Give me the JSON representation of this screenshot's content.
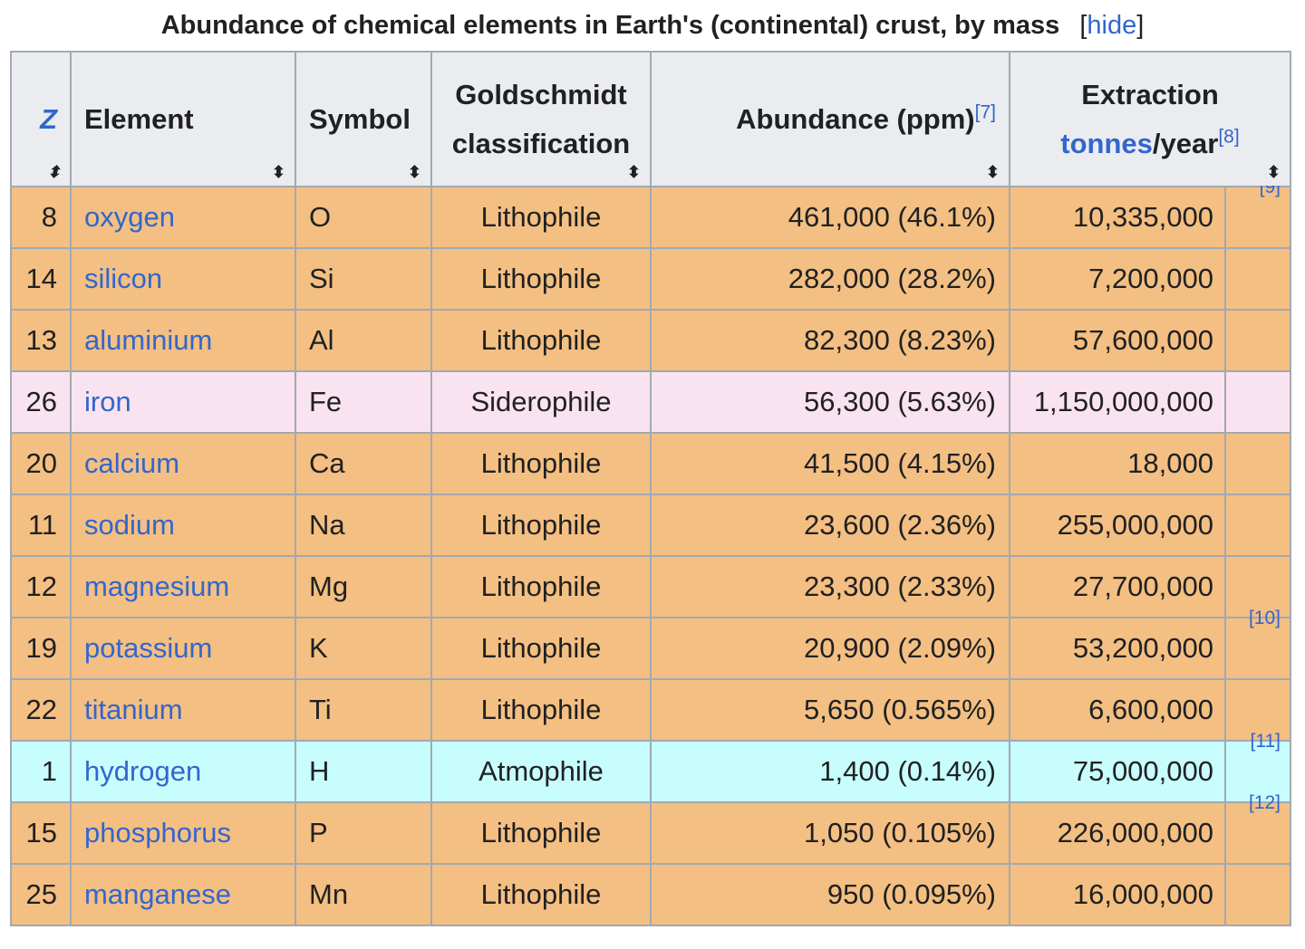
{
  "caption": {
    "title": "Abundance of chemical elements in Earth's (continental) crust, by mass",
    "hide_bracket_open": "[",
    "hide_label": "hide",
    "hide_bracket_close": "]"
  },
  "headers": {
    "z": "Z",
    "element": "Element",
    "symbol": "Symbol",
    "goldschmidt_line1": "Goldschmidt",
    "goldschmidt_line2": "classification",
    "abundance": "Abundance (ppm)",
    "abundance_ref": "[7]",
    "extraction_line1": "Extraction",
    "extraction_link": "tonnes",
    "extraction_suffix": "/year",
    "extraction_ref": "[8]",
    "sort_icon": "⬍"
  },
  "colors": {
    "lithophile": "#f4bf82",
    "siderophile": "#fae3f0",
    "atmophile": "#c8fdfd",
    "link": "#3366cc",
    "header_bg": "#eaecf0",
    "border": "#a2a9b1"
  },
  "rows": [
    {
      "z": "8",
      "element": "oxygen",
      "symbol": "O",
      "class": "Lithophile",
      "abundance": "461,000 (46.1%)",
      "extraction": "10,335,000",
      "ref": "[9]",
      "type": "lithophile"
    },
    {
      "z": "14",
      "element": "silicon",
      "symbol": "Si",
      "class": "Lithophile",
      "abundance": "282,000 (28.2%)",
      "extraction": "7,200,000",
      "ref": "",
      "type": "lithophile"
    },
    {
      "z": "13",
      "element": "aluminium",
      "symbol": "Al",
      "class": "Lithophile",
      "abundance": "82,300 (8.23%)",
      "extraction": "57,600,000",
      "ref": "",
      "type": "lithophile"
    },
    {
      "z": "26",
      "element": "iron",
      "symbol": "Fe",
      "class": "Siderophile",
      "abundance": "56,300 (5.63%)",
      "extraction": "1,150,000,000",
      "ref": "",
      "type": "siderophile"
    },
    {
      "z": "20",
      "element": "calcium",
      "symbol": "Ca",
      "class": "Lithophile",
      "abundance": "41,500 (4.15%)",
      "extraction": "18,000",
      "ref": "",
      "type": "lithophile"
    },
    {
      "z": "11",
      "element": "sodium",
      "symbol": "Na",
      "class": "Lithophile",
      "abundance": "23,600 (2.36%)",
      "extraction": "255,000,000",
      "ref": "",
      "type": "lithophile"
    },
    {
      "z": "12",
      "element": "magnesium",
      "symbol": "Mg",
      "class": "Lithophile",
      "abundance": "23,300 (2.33%)",
      "extraction": "27,700,000",
      "ref": "",
      "type": "lithophile"
    },
    {
      "z": "19",
      "element": "potassium",
      "symbol": "K",
      "class": "Lithophile",
      "abundance": "20,900 (2.09%)",
      "extraction": "53,200,000",
      "ref": "[10]",
      "type": "lithophile"
    },
    {
      "z": "22",
      "element": "titanium",
      "symbol": "Ti",
      "class": "Lithophile",
      "abundance": "5,650 (0.565%)",
      "extraction": "6,600,000",
      "ref": "",
      "type": "lithophile"
    },
    {
      "z": "1",
      "element": "hydrogen",
      "symbol": "H",
      "class": "Atmophile",
      "abundance": "1,400 (0.14%)",
      "extraction": "75,000,000",
      "ref": "[11]",
      "type": "atmophile"
    },
    {
      "z": "15",
      "element": "phosphorus",
      "symbol": "P",
      "class": "Lithophile",
      "abundance": "1,050 (0.105%)",
      "extraction": "226,000,000",
      "ref": "[12]",
      "type": "lithophile"
    },
    {
      "z": "25",
      "element": "manganese",
      "symbol": "Mn",
      "class": "Lithophile",
      "abundance": "950 (0.095%)",
      "extraction": "16,000,000",
      "ref": "",
      "type": "lithophile"
    }
  ]
}
